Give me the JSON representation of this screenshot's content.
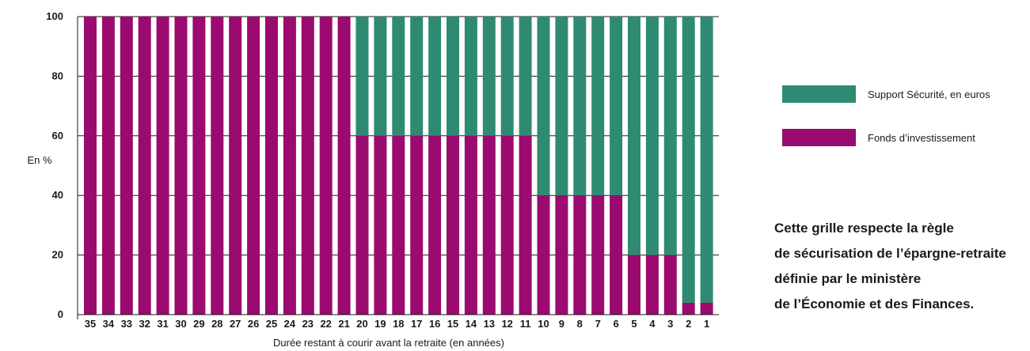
{
  "chart_data": {
    "type": "bar",
    "stacked": true,
    "categories": [
      "35",
      "34",
      "33",
      "32",
      "31",
      "30",
      "29",
      "28",
      "27",
      "26",
      "25",
      "24",
      "23",
      "22",
      "21",
      "20",
      "19",
      "18",
      "17",
      "16",
      "15",
      "14",
      "13",
      "12",
      "11",
      "10",
      "9",
      "8",
      "7",
      "6",
      "5",
      "4",
      "3",
      "2",
      "1"
    ],
    "series": [
      {
        "name": "Fonds d’investissement",
        "color": "#9b0a6e",
        "values": [
          100,
          100,
          100,
          100,
          100,
          100,
          100,
          100,
          100,
          100,
          100,
          100,
          100,
          100,
          100,
          60,
          60,
          60,
          60,
          60,
          60,
          60,
          60,
          60,
          60,
          40,
          40,
          40,
          40,
          40,
          20,
          20,
          20,
          4,
          4
        ]
      },
      {
        "name": "Support Sécurité, en euros",
        "color": "#2f8a74",
        "values": [
          0,
          0,
          0,
          0,
          0,
          0,
          0,
          0,
          0,
          0,
          0,
          0,
          0,
          0,
          0,
          40,
          40,
          40,
          40,
          40,
          40,
          40,
          40,
          40,
          40,
          60,
          60,
          60,
          60,
          60,
          80,
          80,
          80,
          96,
          96
        ]
      }
    ],
    "xlabel": "Durée restant à courir avant la retraite (en années)",
    "ylabel": "En %",
    "ylim": [
      0,
      100
    ],
    "yticks": [
      "0",
      "20",
      "40",
      "60",
      "80",
      "100"
    ],
    "grid": true,
    "legend_position": "right"
  },
  "legend": {
    "items": [
      {
        "label": "Support Sécurité, en euros",
        "color": "#2f8a74"
      },
      {
        "label": "Fonds d’investissement",
        "color": "#9b0a6e"
      }
    ]
  },
  "note": {
    "lines": [
      "Cette grille respecte la règle",
      "de sécurisation de l’épargne-retraite",
      "définie par le ministère",
      "de l’Économie et des Finances."
    ]
  }
}
